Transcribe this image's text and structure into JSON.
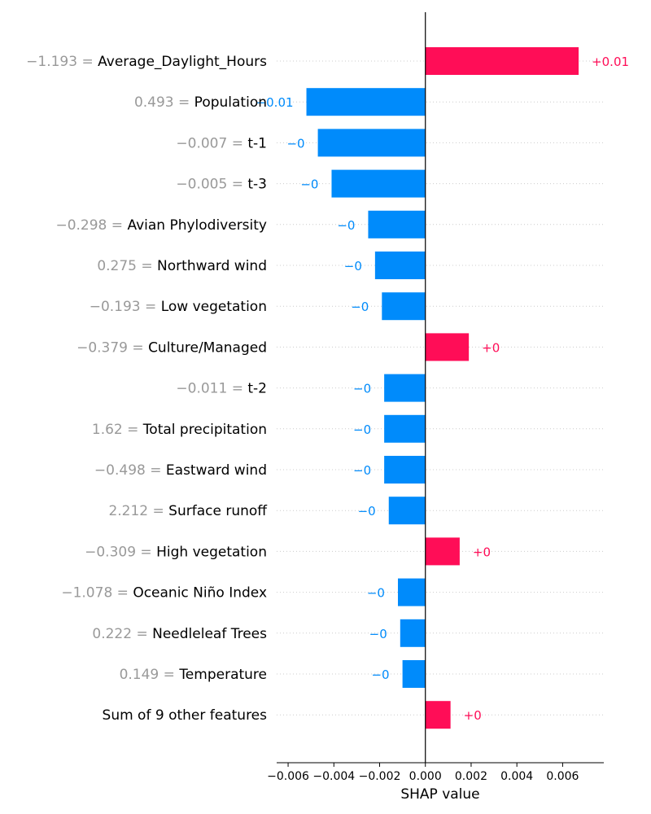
{
  "chart_data": {
    "type": "bar",
    "orientation": "horizontal",
    "xlabel": "SHAP value",
    "xlim": [
      -0.0065,
      0.0078
    ],
    "xticks": [
      -0.006,
      -0.004,
      -0.002,
      0.0,
      0.002,
      0.004,
      0.006
    ],
    "xtick_labels": [
      "−0.006",
      "−0.004",
      "−0.002",
      "0.000",
      "0.002",
      "0.004",
      "0.006"
    ],
    "grid": "horizontal dotted row lines",
    "colors": {
      "positive": "#ff0d57",
      "negative": "#008bfb",
      "feature_value": "#999999"
    },
    "features": [
      {
        "feature_value": "−1.193",
        "name": "Average_Daylight_Hours",
        "shap": 0.0067,
        "label": "+0.01"
      },
      {
        "feature_value": "0.493",
        "name": "Population",
        "shap": -0.0052,
        "label": "−0.01"
      },
      {
        "feature_value": "−0.007",
        "name": "t-1",
        "shap": -0.0047,
        "label": "−0"
      },
      {
        "feature_value": "−0.005",
        "name": "t-3",
        "shap": -0.0041,
        "label": "−0"
      },
      {
        "feature_value": "−0.298",
        "name": "Avian Phylodiversity",
        "shap": -0.0025,
        "label": "−0"
      },
      {
        "feature_value": "0.275",
        "name": "Northward wind",
        "shap": -0.0022,
        "label": "−0"
      },
      {
        "feature_value": "−0.193",
        "name": "Low vegetation",
        "shap": -0.0019,
        "label": "−0"
      },
      {
        "feature_value": "−0.379",
        "name": "Culture/Managed",
        "shap": 0.0019,
        "label": "+0"
      },
      {
        "feature_value": "−0.011",
        "name": "t-2",
        "shap": -0.0018,
        "label": "−0"
      },
      {
        "feature_value": "1.62",
        "name": "Total precipitation",
        "shap": -0.0018,
        "label": "−0"
      },
      {
        "feature_value": "−0.498",
        "name": "Eastward wind",
        "shap": -0.0018,
        "label": "−0"
      },
      {
        "feature_value": "2.212",
        "name": "Surface runoff",
        "shap": -0.0016,
        "label": "−0"
      },
      {
        "feature_value": "−0.309",
        "name": "High vegetation",
        "shap": 0.0015,
        "label": "+0"
      },
      {
        "feature_value": "−1.078",
        "name": "Oceanic Niño Index",
        "shap": -0.0012,
        "label": "−0"
      },
      {
        "feature_value": "0.222",
        "name": "Needleleaf Trees",
        "shap": -0.0011,
        "label": "−0"
      },
      {
        "feature_value": "0.149",
        "name": "Temperature",
        "shap": -0.001,
        "label": "−0"
      },
      {
        "feature_value": "",
        "name": "Sum of 9 other features",
        "shap": 0.0011,
        "label": "+0"
      }
    ]
  }
}
